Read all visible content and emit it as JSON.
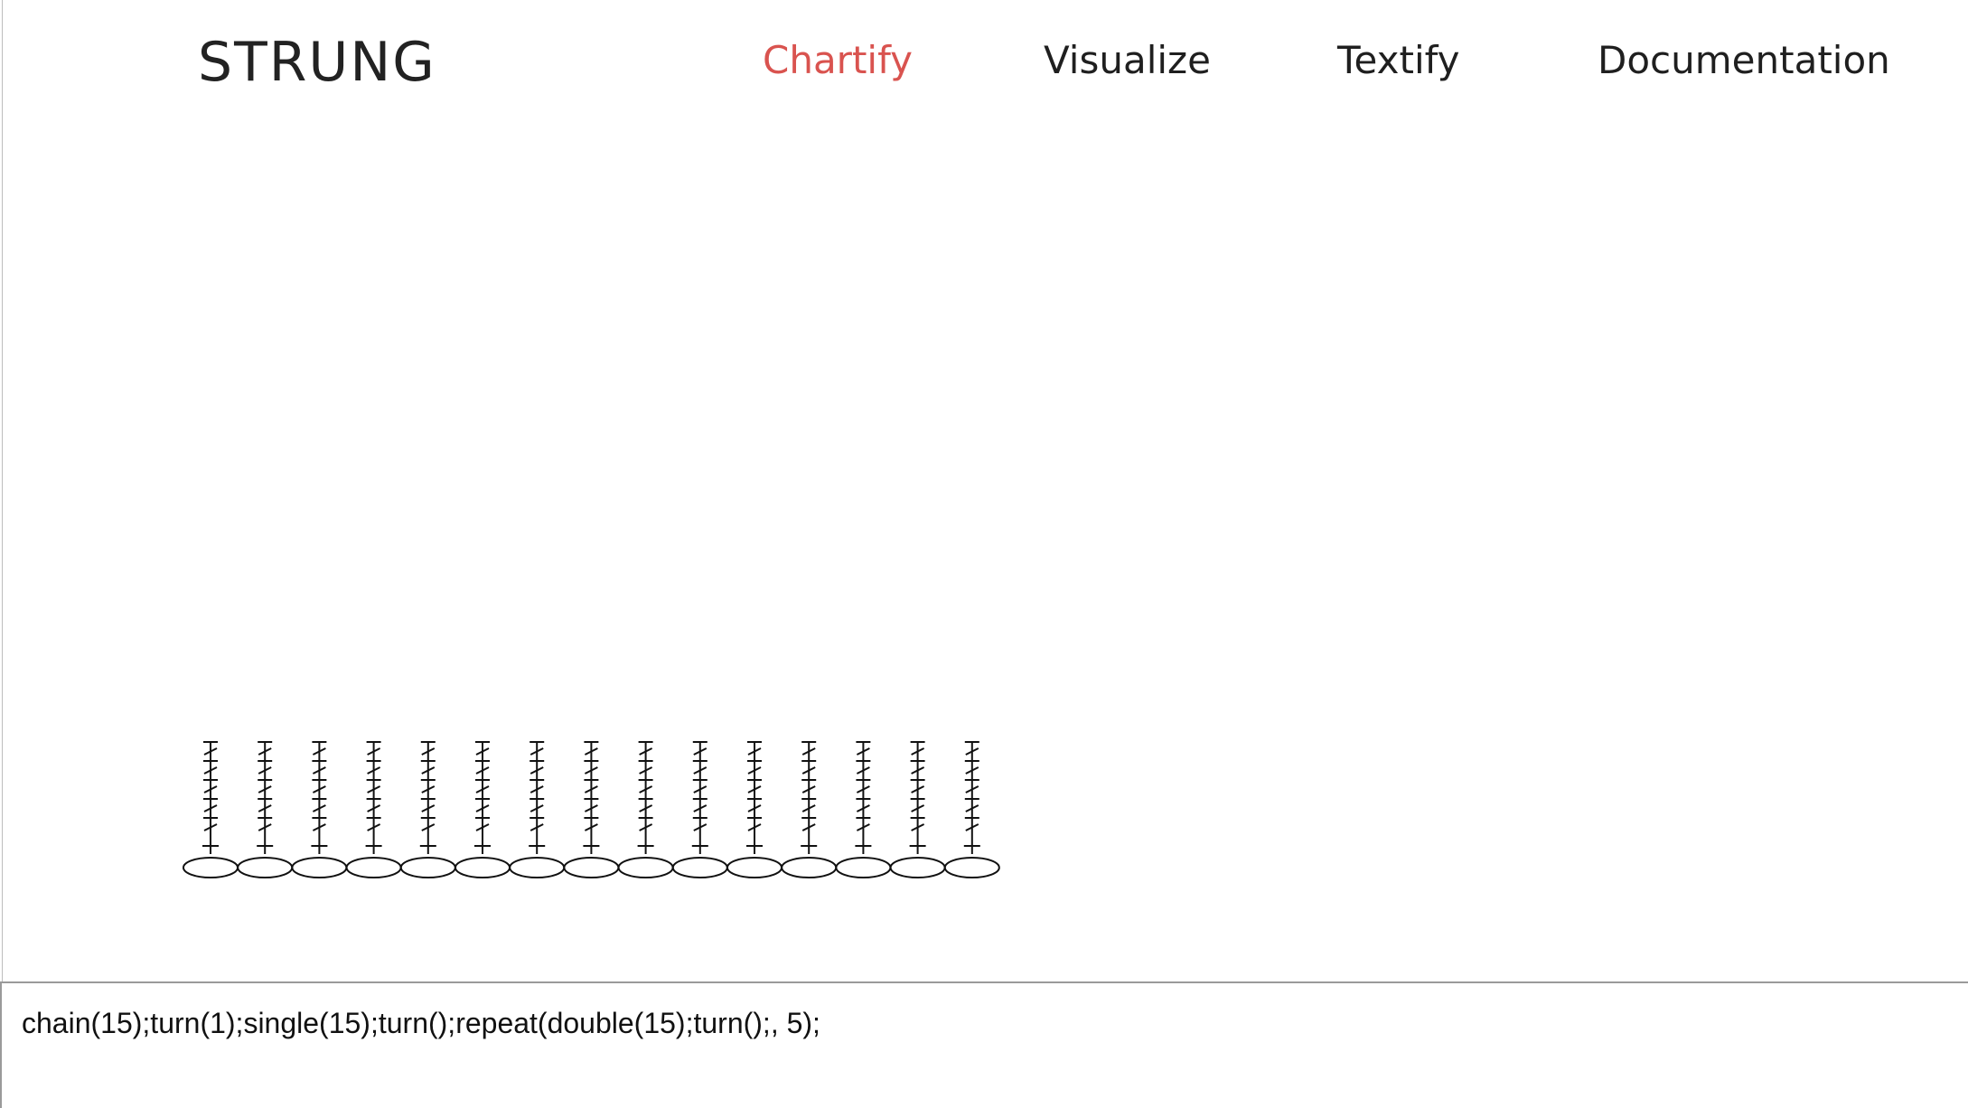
{
  "app": {
    "logo": "STRUNG"
  },
  "nav": {
    "items": [
      {
        "label": "Chartify",
        "active": true
      },
      {
        "label": "Visualize",
        "active": false
      },
      {
        "label": "Textify",
        "active": false
      },
      {
        "label": "Documentation",
        "active": false
      }
    ],
    "active_color": "#d9534f",
    "text_color": "#1f1f1f"
  },
  "chart": {
    "stitch_columns": 15,
    "foundation": "chain",
    "foundation_count": 15,
    "rows": [
      {
        "stitch": "single",
        "count": 15
      },
      {
        "stitch": "double",
        "count": 15
      },
      {
        "stitch": "double",
        "count": 15
      },
      {
        "stitch": "double",
        "count": 15
      },
      {
        "stitch": "double",
        "count": 15
      },
      {
        "stitch": "double",
        "count": 15
      }
    ]
  },
  "editor": {
    "value": "chain(15);turn(1);single(15);turn();repeat(double(15);turn();, 5);"
  }
}
